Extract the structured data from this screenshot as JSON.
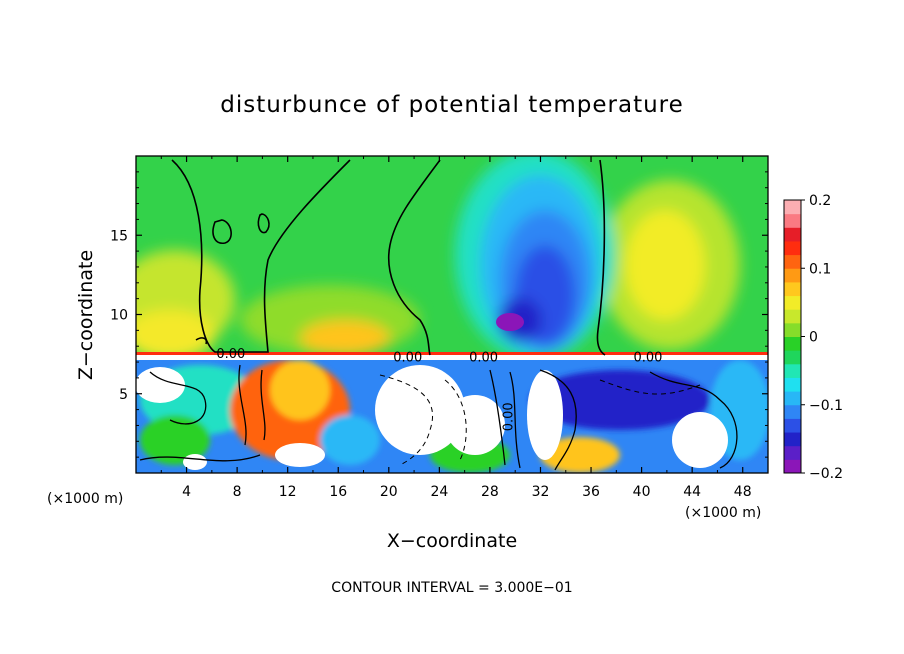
{
  "chart_data": {
    "type": "heatmap",
    "title": "disturbunce of potential temperature",
    "xlabel": "X−coordinate",
    "ylabel": "Z−coordinate",
    "x_unit": "(×1000 m)",
    "x_unit_right": "(×1000 m)",
    "xlim": [
      0,
      50
    ],
    "ylim": [
      0,
      20
    ],
    "x_ticks": [
      4,
      8,
      12,
      16,
      20,
      24,
      28,
      32,
      36,
      40,
      44,
      48
    ],
    "y_ticks": [
      5,
      10,
      15
    ],
    "colorbar": {
      "min": -0.2,
      "max": 0.2,
      "ticks": [
        {
          "value": 0.2,
          "label": "0.2"
        },
        {
          "value": 0.1,
          "label": "0.1"
        },
        {
          "value": 0.0,
          "label": "0"
        },
        {
          "value": -0.1,
          "label": "−0.1"
        },
        {
          "value": -0.2,
          "label": "−0.2"
        }
      ],
      "colors": [
        "#8b16b8",
        "#5b1fc8",
        "#2222c8",
        "#2c50e6",
        "#2f86f5",
        "#28b7f6",
        "#1fe0f0",
        "#21e6b4",
        "#1fd65c",
        "#29d127",
        "#86dd2a",
        "#c8e82c",
        "#f2ec28",
        "#ffc81e",
        "#ff9a14",
        "#ff6410",
        "#ff2d0f",
        "#e61e28",
        "#fa7a82",
        "#fcaeb2"
      ]
    },
    "annotations": [
      {
        "text": "0.00",
        "x": 7.5,
        "z": 7.5
      },
      {
        "text": "0.00",
        "x": 21.5,
        "z": 7.3
      },
      {
        "text": "0.00",
        "x": 27.5,
        "z": 7.3
      },
      {
        "text": "0.00",
        "x": 40.5,
        "z": 7.3
      },
      {
        "text": "0.00",
        "x": 29.8,
        "z": 3.8
      }
    ],
    "footer": "CONTOUR INTERVAL = 3.000E−01"
  }
}
